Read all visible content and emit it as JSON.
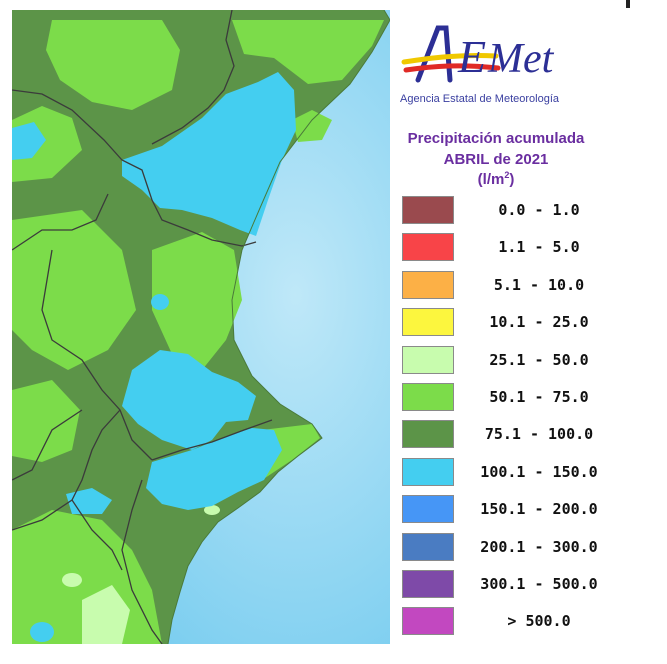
{
  "logo": {
    "text": "AEMet",
    "subtitle": "Agencia Estatal de Meteorología"
  },
  "legend": {
    "title_line1": "Precipitación acumulada",
    "title_line2": "ABRIL de 2021",
    "units": "(l/m",
    "units_sup": "2",
    "units_close": ")",
    "classes": [
      {
        "label": "0.0 - 1.0",
        "color": "#9a4a4e"
      },
      {
        "label": "1.1 - 5.0",
        "color": "#f84448"
      },
      {
        "label": "5.1 - 10.0",
        "color": "#fcb046"
      },
      {
        "label": "10.1 - 25.0",
        "color": "#fcf63e"
      },
      {
        "label": "25.1 - 50.0",
        "color": "#c8fcae"
      },
      {
        "label": "50.1 - 75.0",
        "color": "#7cdc4a"
      },
      {
        "label": "75.1 - 100.0",
        "color": "#5c9448"
      },
      {
        "label": "100.1 - 150.0",
        "color": "#44cef0"
      },
      {
        "label": "150.1 - 200.0",
        "color": "#4696f6"
      },
      {
        "label": "200.1 - 300.0",
        "color": "#4a7cc2"
      },
      {
        "label": "300.1 - 500.0",
        "color": "#7e4aa8"
      },
      {
        "label": "> 500.0",
        "color": "#c248c0"
      }
    ]
  },
  "colors": {
    "sea": "#8fd6f2",
    "dark_green": "#5c9448",
    "light_green": "#7cdc4a",
    "cyan": "#44cef0",
    "pale_green": "#c8fcae",
    "borders": "#3b3b3b"
  }
}
